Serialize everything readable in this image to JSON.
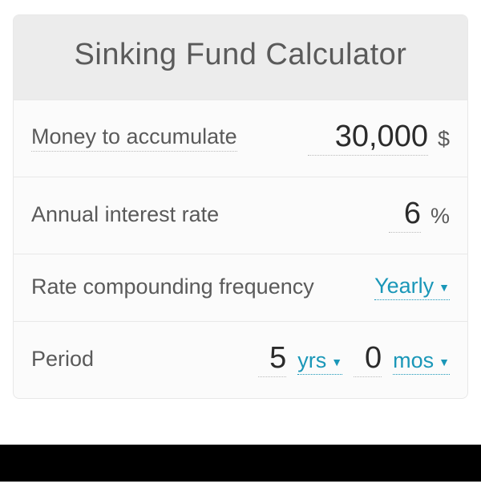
{
  "title": "Sinking Fund Calculator",
  "colors": {
    "card_bg": "#fbfbfb",
    "header_bg": "#ececec",
    "border": "#e8e8e8",
    "text_muted": "#5a5a5a",
    "text_value": "#2b2b2b",
    "accent": "#1a97b8",
    "dotted_border": "#bbbbbb",
    "bottom_bar": "#000000"
  },
  "fields": {
    "money": {
      "label": "Money to accumulate",
      "value": "30,000",
      "unit": "$"
    },
    "interest": {
      "label": "Annual interest rate",
      "value": "6",
      "unit": "%"
    },
    "compounding": {
      "label": "Rate compounding frequency",
      "selected": "Yearly"
    },
    "period": {
      "label": "Period",
      "years": {
        "value": "5",
        "unit": "yrs"
      },
      "months": {
        "value": "0",
        "unit": "mos"
      }
    }
  }
}
